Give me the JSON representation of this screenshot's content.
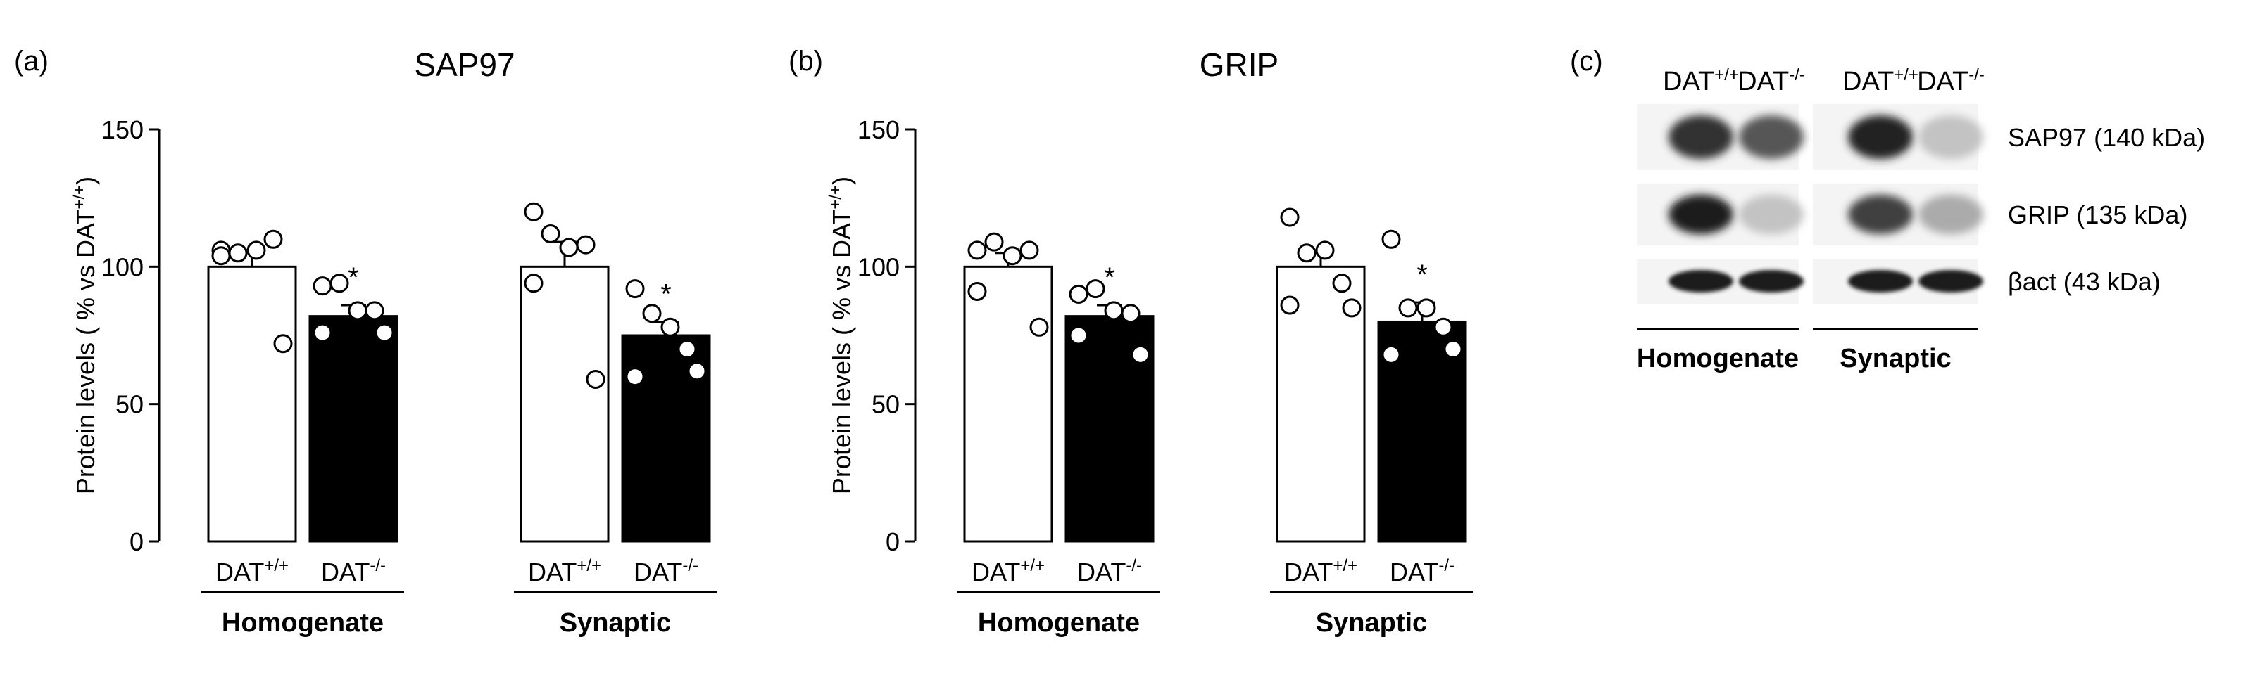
{
  "figure": {
    "panels": [
      {
        "letter": "(a)"
      },
      {
        "letter": "(b)"
      },
      {
        "letter": "(c)"
      }
    ]
  },
  "chart_data": [
    {
      "type": "bar",
      "panel": "(a)",
      "title": "SAP97",
      "ylabel": "Protein levels ( % vs DAT+/+)",
      "ylim": [
        0,
        150
      ],
      "yticks": [
        0,
        50,
        100,
        150
      ],
      "groups": [
        "Homogenate",
        "Synaptic"
      ],
      "genotype_labels": [
        "DAT",
        "DAT"
      ],
      "genotype_superscripts": [
        "+/+",
        "-/-"
      ],
      "bars": [
        {
          "group": "Homogenate",
          "genotype": "DAT+/+",
          "fill": "#ffffff",
          "value": 100,
          "sem": 6,
          "points": [
            106,
            105,
            106,
            110,
            104,
            72
          ],
          "significant": false
        },
        {
          "group": "Homogenate",
          "genotype": "DAT-/-",
          "fill": "#000000",
          "value": 82,
          "sem": 4,
          "points": [
            93,
            94,
            84,
            84,
            76,
            76
          ],
          "significant": true
        },
        {
          "group": "Synaptic",
          "genotype": "DAT+/+",
          "fill": "#ffffff",
          "value": 100,
          "sem": 9,
          "points": [
            120,
            112,
            107,
            108,
            94,
            59
          ],
          "significant": false
        },
        {
          "group": "Synaptic",
          "genotype": "DAT-/-",
          "fill": "#000000",
          "value": 75,
          "sem": 5,
          "points": [
            92,
            83,
            78,
            70,
            60,
            62
          ],
          "significant": true
        }
      ],
      "significance_marker": "*"
    },
    {
      "type": "bar",
      "panel": "(b)",
      "title": "GRIP",
      "ylabel": "Protein levels ( % vs DAT+/+)",
      "ylim": [
        0,
        150
      ],
      "yticks": [
        0,
        50,
        100,
        150
      ],
      "groups": [
        "Homogenate",
        "Synaptic"
      ],
      "genotype_labels": [
        "DAT",
        "DAT"
      ],
      "genotype_superscripts": [
        "+/+",
        "-/-"
      ],
      "bars": [
        {
          "group": "Homogenate",
          "genotype": "DAT+/+",
          "fill": "#ffffff",
          "value": 100,
          "sem": 5,
          "points": [
            106,
            109,
            104,
            106,
            91,
            78
          ],
          "significant": false
        },
        {
          "group": "Homogenate",
          "genotype": "DAT-/-",
          "fill": "#000000",
          "value": 82,
          "sem": 4,
          "points": [
            90,
            92,
            84,
            83,
            75,
            68
          ],
          "significant": true
        },
        {
          "group": "Synaptic",
          "genotype": "DAT+/+",
          "fill": "#ffffff",
          "value": 100,
          "sem": 5,
          "points": [
            118,
            105,
            106,
            94,
            86,
            85
          ],
          "significant": false
        },
        {
          "group": "Synaptic",
          "genotype": "DAT-/-",
          "fill": "#000000",
          "value": 80,
          "sem": 7,
          "points": [
            110,
            85,
            85,
            78,
            68,
            70
          ],
          "significant": true
        }
      ],
      "significance_marker": "*"
    }
  ],
  "blot": {
    "header_genotypes": [
      {
        "base": "DAT",
        "sup": "+/+"
      },
      {
        "base": "DAT",
        "sup": "-/-"
      },
      {
        "base": "DAT",
        "sup": "+/+"
      },
      {
        "base": "DAT",
        "sup": "-/-"
      }
    ],
    "rows": [
      {
        "label": "SAP97 (140 kDa)",
        "intensities": [
          0.85,
          0.7,
          0.92,
          0.25
        ]
      },
      {
        "label": "GRIP (135 kDa)",
        "intensities": [
          0.95,
          0.25,
          0.8,
          0.35
        ]
      },
      {
        "label": "βact (43 kDa)",
        "intensities": [
          0.95,
          0.95,
          0.95,
          0.95
        ]
      }
    ],
    "fractions": [
      "Homogenate",
      "Synaptic"
    ]
  }
}
